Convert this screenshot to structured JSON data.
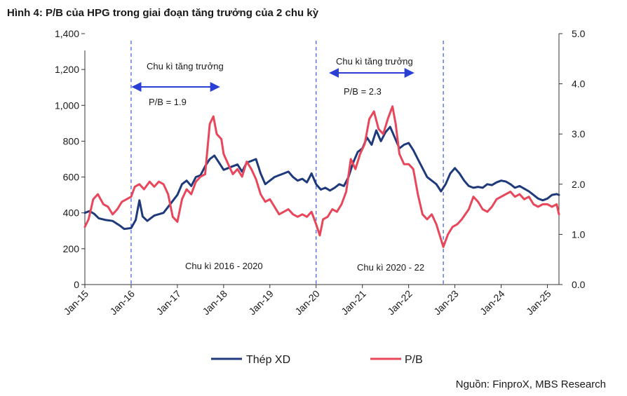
{
  "figure": {
    "title": "Hình 4: P/B của HPG trong giai đoạn tăng trưởng của 2 chu kỳ",
    "source": "Nguồn: FinproX, MBS Research"
  },
  "chart_data": {
    "type": "line",
    "title": "Hình 4: P/B của HPG trong giai đoạn tăng trưởng của 2 chu kỳ",
    "x_tick_labels": [
      "Jan-15",
      "Jan-16",
      "Jan-17",
      "Jan-18",
      "Jan-19",
      "Jan-20",
      "Jan-21",
      "Jan-22",
      "Jan-23",
      "Jan-24",
      "Jan-25"
    ],
    "x_range": [
      2015.0,
      2025.25
    ],
    "y_left": {
      "range": [
        0,
        1400
      ],
      "ticks": [
        "0",
        "200",
        "400",
        "600",
        "800",
        "1,000",
        "1,200",
        "1,400"
      ],
      "tick_values": [
        0,
        200,
        400,
        600,
        800,
        1000,
        1200,
        1400
      ]
    },
    "y_right": {
      "range": [
        0,
        5
      ],
      "ticks": [
        "0.0",
        "1.0",
        "2.0",
        "3.0",
        "4.0",
        "5.0"
      ],
      "tick_values": [
        0,
        1,
        2,
        3,
        4,
        5
      ]
    },
    "series": [
      {
        "name": "Thép XD",
        "axis": "left",
        "color": "#1f3a7a",
        "points": [
          [
            2015.0,
            400
          ],
          [
            2015.1,
            410
          ],
          [
            2015.2,
            395
          ],
          [
            2015.3,
            370
          ],
          [
            2015.45,
            360
          ],
          [
            2015.6,
            355
          ],
          [
            2015.75,
            330
          ],
          [
            2015.85,
            310
          ],
          [
            2016.0,
            315
          ],
          [
            2016.1,
            360
          ],
          [
            2016.18,
            470
          ],
          [
            2016.25,
            380
          ],
          [
            2016.35,
            355
          ],
          [
            2016.5,
            385
          ],
          [
            2016.7,
            400
          ],
          [
            2016.85,
            450
          ],
          [
            2017.0,
            500
          ],
          [
            2017.1,
            560
          ],
          [
            2017.2,
            580
          ],
          [
            2017.3,
            550
          ],
          [
            2017.4,
            600
          ],
          [
            2017.5,
            610
          ],
          [
            2017.6,
            660
          ],
          [
            2017.7,
            700
          ],
          [
            2017.8,
            720
          ],
          [
            2017.9,
            680
          ],
          [
            2018.0,
            640
          ],
          [
            2018.1,
            650
          ],
          [
            2018.2,
            660
          ],
          [
            2018.3,
            670
          ],
          [
            2018.4,
            630
          ],
          [
            2018.5,
            680
          ],
          [
            2018.6,
            690
          ],
          [
            2018.7,
            700
          ],
          [
            2018.8,
            620
          ],
          [
            2018.9,
            560
          ],
          [
            2019.0,
            580
          ],
          [
            2019.1,
            600
          ],
          [
            2019.2,
            610
          ],
          [
            2019.3,
            620
          ],
          [
            2019.4,
            630
          ],
          [
            2019.5,
            600
          ],
          [
            2019.6,
            580
          ],
          [
            2019.7,
            590
          ],
          [
            2019.8,
            570
          ],
          [
            2019.9,
            620
          ],
          [
            2020.0,
            560
          ],
          [
            2020.1,
            530
          ],
          [
            2020.2,
            540
          ],
          [
            2020.3,
            525
          ],
          [
            2020.4,
            540
          ],
          [
            2020.5,
            560
          ],
          [
            2020.6,
            550
          ],
          [
            2020.7,
            600
          ],
          [
            2020.8,
            680
          ],
          [
            2020.9,
            740
          ],
          [
            2021.0,
            760
          ],
          [
            2021.1,
            820
          ],
          [
            2021.2,
            780
          ],
          [
            2021.3,
            860
          ],
          [
            2021.4,
            800
          ],
          [
            2021.5,
            850
          ],
          [
            2021.6,
            880
          ],
          [
            2021.7,
            820
          ],
          [
            2021.8,
            760
          ],
          [
            2021.9,
            780
          ],
          [
            2022.0,
            790
          ],
          [
            2022.1,
            750
          ],
          [
            2022.2,
            700
          ],
          [
            2022.3,
            650
          ],
          [
            2022.4,
            600
          ],
          [
            2022.5,
            580
          ],
          [
            2022.6,
            560
          ],
          [
            2022.7,
            520
          ],
          [
            2022.8,
            560
          ],
          [
            2022.9,
            620
          ],
          [
            2023.0,
            650
          ],
          [
            2023.1,
            620
          ],
          [
            2023.2,
            580
          ],
          [
            2023.3,
            550
          ],
          [
            2023.4,
            540
          ],
          [
            2023.5,
            545
          ],
          [
            2023.6,
            540
          ],
          [
            2023.7,
            560
          ],
          [
            2023.8,
            555
          ],
          [
            2023.9,
            570
          ],
          [
            2024.0,
            580
          ],
          [
            2024.1,
            575
          ],
          [
            2024.2,
            560
          ],
          [
            2024.3,
            540
          ],
          [
            2024.4,
            550
          ],
          [
            2024.5,
            535
          ],
          [
            2024.6,
            520
          ],
          [
            2024.7,
            500
          ],
          [
            2024.8,
            480
          ],
          [
            2024.9,
            470
          ],
          [
            2025.0,
            480
          ],
          [
            2025.1,
            500
          ],
          [
            2025.2,
            505
          ],
          [
            2025.25,
            500
          ]
        ]
      },
      {
        "name": "P/B",
        "axis": "right",
        "color": "#e8465a",
        "points": [
          [
            2015.0,
            1.15
          ],
          [
            2015.08,
            1.3
          ],
          [
            2015.18,
            1.7
          ],
          [
            2015.28,
            1.8
          ],
          [
            2015.4,
            1.6
          ],
          [
            2015.5,
            1.55
          ],
          [
            2015.6,
            1.4
          ],
          [
            2015.7,
            1.5
          ],
          [
            2015.8,
            1.65
          ],
          [
            2015.9,
            1.7
          ],
          [
            2016.0,
            1.75
          ],
          [
            2016.08,
            1.95
          ],
          [
            2016.18,
            2.0
          ],
          [
            2016.28,
            1.9
          ],
          [
            2016.4,
            2.05
          ],
          [
            2016.5,
            1.95
          ],
          [
            2016.6,
            2.05
          ],
          [
            2016.7,
            2.0
          ],
          [
            2016.8,
            1.8
          ],
          [
            2016.9,
            1.35
          ],
          [
            2017.0,
            1.25
          ],
          [
            2017.1,
            1.7
          ],
          [
            2017.2,
            1.9
          ],
          [
            2017.3,
            1.8
          ],
          [
            2017.4,
            2.05
          ],
          [
            2017.5,
            2.15
          ],
          [
            2017.6,
            2.2
          ],
          [
            2017.7,
            3.2
          ],
          [
            2017.78,
            3.35
          ],
          [
            2017.85,
            3.0
          ],
          [
            2017.95,
            2.9
          ],
          [
            2018.0,
            2.6
          ],
          [
            2018.1,
            2.4
          ],
          [
            2018.2,
            2.2
          ],
          [
            2018.3,
            2.3
          ],
          [
            2018.4,
            2.15
          ],
          [
            2018.5,
            2.45
          ],
          [
            2018.6,
            2.3
          ],
          [
            2018.7,
            2.1
          ],
          [
            2018.8,
            1.8
          ],
          [
            2018.9,
            1.65
          ],
          [
            2019.0,
            1.7
          ],
          [
            2019.1,
            1.55
          ],
          [
            2019.2,
            1.4
          ],
          [
            2019.3,
            1.45
          ],
          [
            2019.4,
            1.5
          ],
          [
            2019.5,
            1.4
          ],
          [
            2019.6,
            1.35
          ],
          [
            2019.7,
            1.4
          ],
          [
            2019.8,
            1.35
          ],
          [
            2019.9,
            1.45
          ],
          [
            2020.0,
            1.2
          ],
          [
            2020.08,
            0.98
          ],
          [
            2020.15,
            1.3
          ],
          [
            2020.25,
            1.35
          ],
          [
            2020.35,
            1.5
          ],
          [
            2020.45,
            1.45
          ],
          [
            2020.55,
            1.6
          ],
          [
            2020.65,
            1.85
          ],
          [
            2020.75,
            2.5
          ],
          [
            2020.85,
            2.3
          ],
          [
            2020.95,
            2.6
          ],
          [
            2021.05,
            2.8
          ],
          [
            2021.15,
            3.3
          ],
          [
            2021.25,
            3.45
          ],
          [
            2021.35,
            3.1
          ],
          [
            2021.45,
            3.0
          ],
          [
            2021.55,
            3.3
          ],
          [
            2021.65,
            3.55
          ],
          [
            2021.72,
            3.2
          ],
          [
            2021.8,
            2.6
          ],
          [
            2021.9,
            2.4
          ],
          [
            2022.0,
            2.4
          ],
          [
            2022.1,
            2.3
          ],
          [
            2022.2,
            1.8
          ],
          [
            2022.3,
            1.4
          ],
          [
            2022.4,
            1.3
          ],
          [
            2022.5,
            1.4
          ],
          [
            2022.6,
            1.2
          ],
          [
            2022.7,
            0.9
          ],
          [
            2022.75,
            0.75
          ],
          [
            2022.85,
            1.0
          ],
          [
            2022.95,
            1.15
          ],
          [
            2023.05,
            1.2
          ],
          [
            2023.15,
            1.3
          ],
          [
            2023.3,
            1.5
          ],
          [
            2023.4,
            1.75
          ],
          [
            2023.5,
            1.65
          ],
          [
            2023.6,
            1.5
          ],
          [
            2023.7,
            1.45
          ],
          [
            2023.8,
            1.55
          ],
          [
            2023.9,
            1.7
          ],
          [
            2024.0,
            1.75
          ],
          [
            2024.1,
            1.8
          ],
          [
            2024.2,
            1.85
          ],
          [
            2024.3,
            1.75
          ],
          [
            2024.4,
            1.8
          ],
          [
            2024.5,
            1.7
          ],
          [
            2024.6,
            1.75
          ],
          [
            2024.7,
            1.6
          ],
          [
            2024.8,
            1.55
          ],
          [
            2024.9,
            1.6
          ],
          [
            2025.0,
            1.6
          ],
          [
            2025.1,
            1.55
          ],
          [
            2025.2,
            1.6
          ],
          [
            2025.25,
            1.4
          ]
        ]
      }
    ],
    "cycle_markers": [
      2016.0,
      2020.0,
      2022.75
    ],
    "annotations": {
      "cycle1_growth": "Chu kì tăng trưởng",
      "cycle1_pb": "P/B = 1.9",
      "cycle1_range": [
        2016.0,
        2017.9
      ],
      "cycle2_growth": "Chu kì tăng trưởng",
      "cycle2_pb": "P/B = 2.3",
      "cycle2_range": [
        2020.3,
        2022.1
      ],
      "cycle1_label": "Chu kì 2016 - 2020",
      "cycle2_label": "Chu kì 2020 - 22"
    },
    "legend": {
      "position": "bottom",
      "items": [
        "Thép XD",
        "P/B"
      ]
    }
  }
}
